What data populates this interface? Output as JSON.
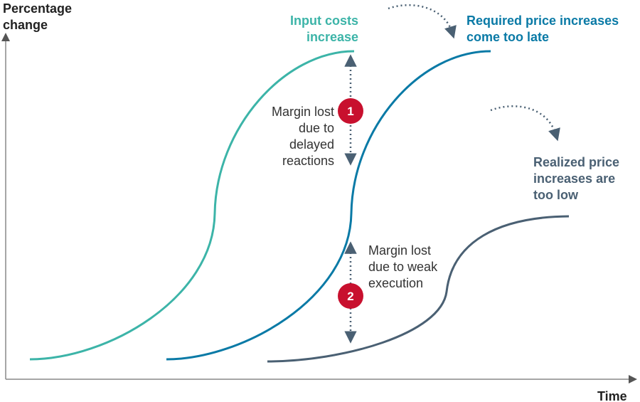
{
  "axes": {
    "y_label": "Percentage change",
    "x_label": "Time"
  },
  "curves": [
    {
      "label": "Input costs increase"
    },
    {
      "label": "Required price increases come too late"
    },
    {
      "label": "Realized price increases are too low"
    }
  ],
  "annotations": [
    {
      "number": "1",
      "text": "Margin lost due to delayed reactions"
    },
    {
      "number": "2",
      "text": "Margin lost due to weak execution"
    }
  ]
}
